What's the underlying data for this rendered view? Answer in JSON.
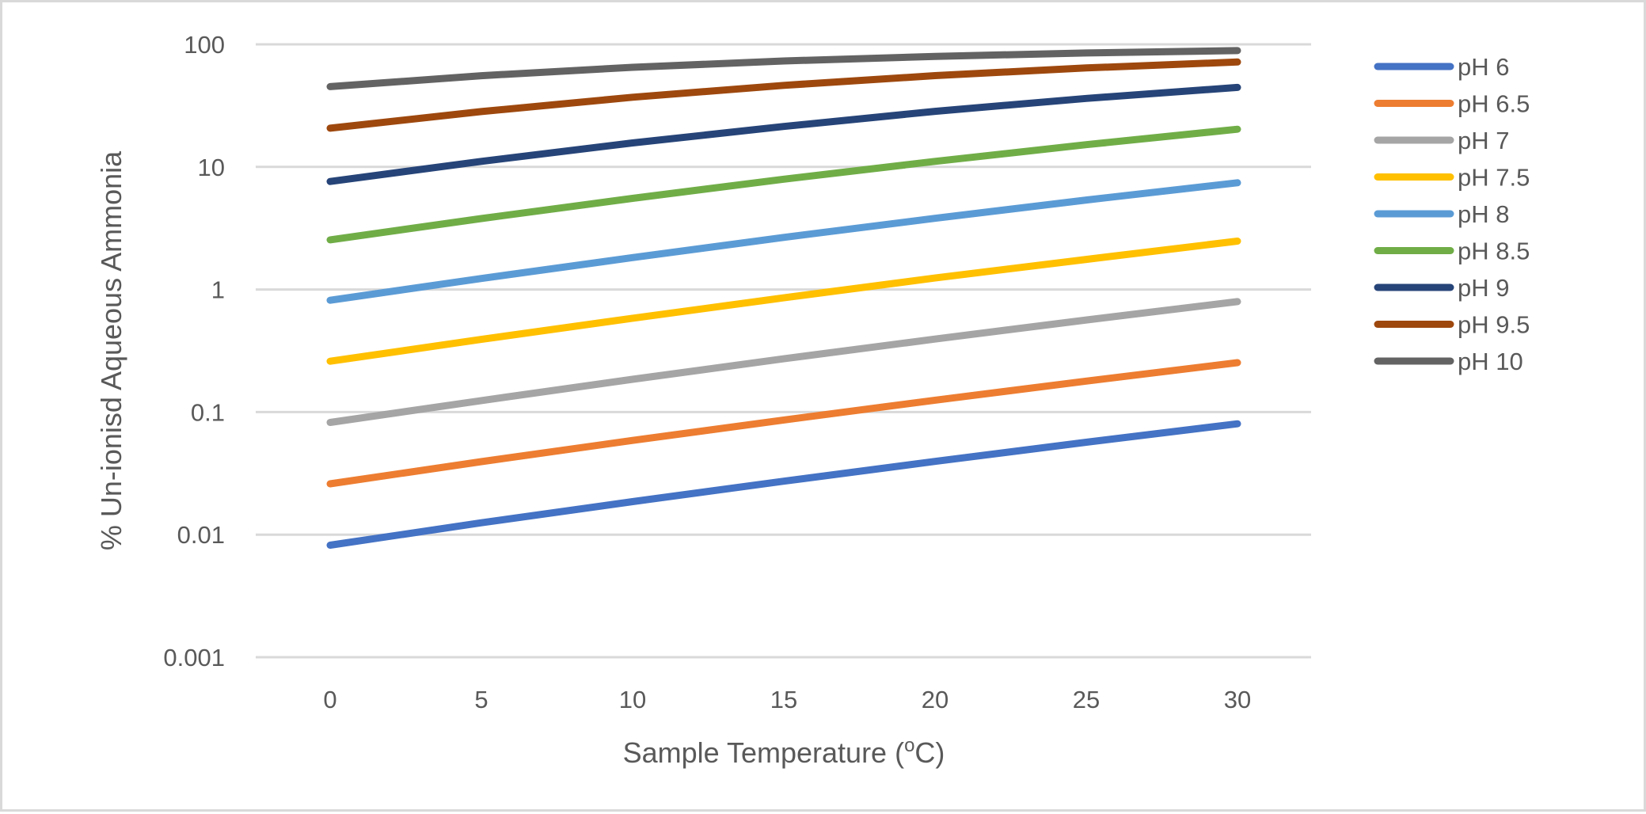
{
  "chart_data": {
    "type": "line",
    "title": "",
    "xlabel": "Sample Temperature (",
    "xlabel_sup": "o",
    "xlabel_end": "C)",
    "ylabel": "% Un-ionisd Aqueous Ammonia",
    "y_scale": "log",
    "ylim": [
      0.001,
      100
    ],
    "xlim": [
      0,
      30
    ],
    "grid": "horizontal",
    "legend_position": "right",
    "x": [
      0,
      5,
      10,
      15,
      20,
      25,
      30
    ],
    "x_tick_labels": [
      "0",
      "5",
      "10",
      "15",
      "20",
      "25",
      "30"
    ],
    "y_ticks": [
      100,
      10,
      1,
      0.1,
      0.01,
      0.001
    ],
    "y_tick_labels": [
      "100",
      "10",
      "1",
      "0.1",
      "0.01",
      "0.001"
    ],
    "series": [
      {
        "name": "pH 6",
        "color": "#4472c4",
        "values": [
          0.0082,
          0.0125,
          0.0186,
          0.0273,
          0.0396,
          0.0567,
          0.0802
        ]
      },
      {
        "name": "pH 6.5",
        "color": "#ed7d31",
        "values": [
          0.026,
          0.0394,
          0.0587,
          0.0862,
          0.125,
          0.179,
          0.253
        ]
      },
      {
        "name": "pH 7",
        "color": "#a5a5a5",
        "values": [
          0.0823,
          0.124,
          0.185,
          0.272,
          0.394,
          0.564,
          0.797
        ]
      },
      {
        "name": "pH 7.5",
        "color": "#ffc000",
        "values": [
          0.26,
          0.392,
          0.583,
          0.855,
          1.24,
          1.76,
          2.48
        ]
      },
      {
        "name": "pH 8",
        "color": "#5b9bd5",
        "values": [
          0.817,
          1.23,
          1.82,
          2.66,
          3.81,
          5.37,
          7.43
        ]
      },
      {
        "name": "pH 8.5",
        "color": "#70ad47",
        "values": [
          2.54,
          3.79,
          5.54,
          7.94,
          11.1,
          15.2,
          20.3
        ]
      },
      {
        "name": "pH 9",
        "color": "#264478",
        "values": [
          7.61,
          11.1,
          15.7,
          21.4,
          28.4,
          36.2,
          44.5
        ]
      },
      {
        "name": "pH 9.5",
        "color": "#9e480e",
        "values": [
          20.7,
          28.3,
          37.0,
          46.3,
          55.6,
          64.2,
          71.8
        ]
      },
      {
        "name": "pH 10",
        "color": "#636363",
        "values": [
          45.2,
          55.5,
          65.0,
          73.2,
          79.8,
          85.0,
          88.9
        ]
      }
    ]
  }
}
